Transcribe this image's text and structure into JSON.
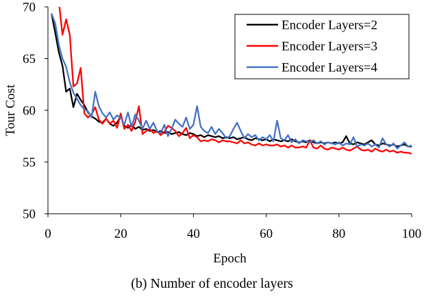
{
  "chart_data": {
    "type": "line",
    "xlabel": "Epoch",
    "ylabel": "Tour Cost",
    "xlim": [
      0,
      100
    ],
    "ylim": [
      50,
      70
    ],
    "xticks": [
      0,
      20,
      40,
      60,
      80,
      100
    ],
    "yticks": [
      50,
      55,
      60,
      65,
      70
    ],
    "grid": false,
    "legend_position": "top-right",
    "series": [
      {
        "name": "Encoder Layers=2",
        "color": "#000000",
        "points": [
          [
            1,
            69.3
          ],
          [
            2,
            67.5
          ],
          [
            3,
            65.6
          ],
          [
            4,
            64.3
          ],
          [
            5,
            61.8
          ],
          [
            6,
            62.1
          ],
          [
            7,
            60.3
          ],
          [
            8,
            61.6
          ],
          [
            9,
            61.0
          ],
          [
            10,
            60.5
          ],
          [
            11,
            59.8
          ],
          [
            12,
            59.4
          ],
          [
            13,
            59.2
          ],
          [
            14,
            58.9
          ],
          [
            15,
            58.8
          ],
          [
            16,
            59.2
          ],
          [
            17,
            58.7
          ],
          [
            18,
            58.5
          ],
          [
            19,
            58.8
          ],
          [
            20,
            59.4
          ],
          [
            21,
            58.5
          ],
          [
            22,
            58.3
          ],
          [
            23,
            58.6
          ],
          [
            24,
            58.2
          ],
          [
            25,
            58.4
          ],
          [
            26,
            58.1
          ],
          [
            27,
            58.2
          ],
          [
            28,
            58.0
          ],
          [
            29,
            58.1
          ],
          [
            30,
            57.9
          ],
          [
            31,
            58.0
          ],
          [
            32,
            57.8
          ],
          [
            33,
            57.9
          ],
          [
            34,
            57.7
          ],
          [
            35,
            57.8
          ],
          [
            36,
            57.9
          ],
          [
            37,
            57.7
          ],
          [
            38,
            57.6
          ],
          [
            39,
            57.8
          ],
          [
            40,
            57.7
          ],
          [
            41,
            57.5
          ],
          [
            42,
            57.6
          ],
          [
            43,
            57.4
          ],
          [
            44,
            57.6
          ],
          [
            45,
            57.5
          ],
          [
            46,
            57.4
          ],
          [
            47,
            57.5
          ],
          [
            48,
            57.3
          ],
          [
            49,
            57.4
          ],
          [
            50,
            57.3
          ],
          [
            51,
            57.4
          ],
          [
            52,
            57.2
          ],
          [
            53,
            57.3
          ],
          [
            54,
            57.4
          ],
          [
            55,
            57.2
          ],
          [
            56,
            57.1
          ],
          [
            57,
            57.3
          ],
          [
            58,
            57.2
          ],
          [
            59,
            57.1
          ],
          [
            60,
            57.2
          ],
          [
            61,
            57.0
          ],
          [
            62,
            57.2
          ],
          [
            63,
            57.1
          ],
          [
            64,
            57.0
          ],
          [
            65,
            57.1
          ],
          [
            66,
            57.0
          ],
          [
            67,
            57.2
          ],
          [
            68,
            57.0
          ],
          [
            69,
            56.9
          ],
          [
            70,
            57.0
          ],
          [
            71,
            56.9
          ],
          [
            72,
            57.1
          ],
          [
            73,
            56.9
          ],
          [
            74,
            56.8
          ],
          [
            75,
            56.9
          ],
          [
            76,
            56.8
          ],
          [
            77,
            56.9
          ],
          [
            78,
            56.8
          ],
          [
            79,
            56.9
          ],
          [
            80,
            56.8
          ],
          [
            81,
            56.9
          ],
          [
            82,
            57.5
          ],
          [
            83,
            56.8
          ],
          [
            84,
            56.7
          ],
          [
            85,
            56.9
          ],
          [
            86,
            56.8
          ],
          [
            87,
            56.7
          ],
          [
            88,
            56.9
          ],
          [
            89,
            57.1
          ],
          [
            90,
            56.7
          ],
          [
            91,
            56.6
          ],
          [
            92,
            56.8
          ],
          [
            93,
            56.7
          ],
          [
            94,
            56.6
          ],
          [
            95,
            56.7
          ],
          [
            96,
            56.5
          ],
          [
            97,
            56.6
          ],
          [
            98,
            56.7
          ],
          [
            99,
            56.5
          ],
          [
            100,
            56.5
          ]
        ]
      },
      {
        "name": "Encoder Layers=3",
        "color": "#ff0000",
        "points": [
          [
            1,
            71.0
          ],
          [
            2,
            70.5
          ],
          [
            3,
            70.5
          ],
          [
            4,
            67.3
          ],
          [
            5,
            68.8
          ],
          [
            6,
            67.3
          ],
          [
            7,
            62.3
          ],
          [
            8,
            62.6
          ],
          [
            9,
            64.1
          ],
          [
            10,
            59.7
          ],
          [
            11,
            59.3
          ],
          [
            12,
            59.6
          ],
          [
            13,
            60.3
          ],
          [
            14,
            59.1
          ],
          [
            15,
            58.7
          ],
          [
            16,
            59.2
          ],
          [
            17,
            58.7
          ],
          [
            18,
            59.0
          ],
          [
            19,
            58.3
          ],
          [
            20,
            59.7
          ],
          [
            21,
            58.2
          ],
          [
            22,
            58.6
          ],
          [
            23,
            58.0
          ],
          [
            24,
            58.9
          ],
          [
            25,
            60.4
          ],
          [
            26,
            57.7
          ],
          [
            27,
            58.0
          ],
          [
            28,
            58.2
          ],
          [
            29,
            57.8
          ],
          [
            30,
            58.0
          ],
          [
            31,
            57.6
          ],
          [
            32,
            57.9
          ],
          [
            33,
            58.5
          ],
          [
            34,
            58.3
          ],
          [
            35,
            58.0
          ],
          [
            36,
            57.5
          ],
          [
            37,
            57.8
          ],
          [
            38,
            58.3
          ],
          [
            39,
            57.3
          ],
          [
            40,
            57.6
          ],
          [
            41,
            57.4
          ],
          [
            42,
            57.0
          ],
          [
            43,
            57.1
          ],
          [
            44,
            57.0
          ],
          [
            45,
            57.2
          ],
          [
            46,
            57.1
          ],
          [
            47,
            56.9
          ],
          [
            48,
            57.1
          ],
          [
            49,
            57.0
          ],
          [
            50,
            57.0
          ],
          [
            51,
            56.9
          ],
          [
            52,
            56.8
          ],
          [
            53,
            57.1
          ],
          [
            54,
            56.8
          ],
          [
            55,
            56.9
          ],
          [
            56,
            56.7
          ],
          [
            57,
            56.6
          ],
          [
            58,
            56.8
          ],
          [
            59,
            56.6
          ],
          [
            60,
            56.7
          ],
          [
            61,
            56.6
          ],
          [
            62,
            56.6
          ],
          [
            63,
            56.7
          ],
          [
            64,
            56.5
          ],
          [
            65,
            56.6
          ],
          [
            66,
            56.4
          ],
          [
            67,
            56.6
          ],
          [
            68,
            56.4
          ],
          [
            69,
            56.4
          ],
          [
            70,
            56.5
          ],
          [
            71,
            56.4
          ],
          [
            72,
            57.1
          ],
          [
            73,
            56.4
          ],
          [
            74,
            56.3
          ],
          [
            75,
            56.6
          ],
          [
            76,
            56.3
          ],
          [
            77,
            56.2
          ],
          [
            78,
            56.4
          ],
          [
            79,
            56.3
          ],
          [
            80,
            56.2
          ],
          [
            81,
            56.4
          ],
          [
            82,
            56.2
          ],
          [
            83,
            56.1
          ],
          [
            84,
            56.3
          ],
          [
            85,
            56.5
          ],
          [
            86,
            56.2
          ],
          [
            87,
            56.1
          ],
          [
            88,
            56.2
          ],
          [
            89,
            56.0
          ],
          [
            90,
            56.3
          ],
          [
            91,
            56.1
          ],
          [
            92,
            56.0
          ],
          [
            93,
            56.2
          ],
          [
            94,
            56.0
          ],
          [
            95,
            56.1
          ],
          [
            96,
            55.9
          ],
          [
            97,
            56.0
          ],
          [
            98,
            55.9
          ],
          [
            99,
            55.9
          ],
          [
            100,
            55.8
          ]
        ]
      },
      {
        "name": "Encoder Layers=4",
        "color": "#4472c4",
        "points": [
          [
            1,
            69.3
          ],
          [
            2,
            68.4
          ],
          [
            3,
            66.3
          ],
          [
            4,
            65.0
          ],
          [
            5,
            64.2
          ],
          [
            6,
            62.7
          ],
          [
            7,
            61.7
          ],
          [
            8,
            61.1
          ],
          [
            9,
            60.5
          ],
          [
            10,
            60.1
          ],
          [
            11,
            59.9
          ],
          [
            12,
            59.3
          ],
          [
            13,
            61.8
          ],
          [
            14,
            60.4
          ],
          [
            15,
            59.7
          ],
          [
            16,
            59.3
          ],
          [
            17,
            59.8
          ],
          [
            18,
            59.1
          ],
          [
            19,
            59.5
          ],
          [
            20,
            59.3
          ],
          [
            21,
            58.6
          ],
          [
            22,
            59.8
          ],
          [
            23,
            58.4
          ],
          [
            24,
            59.6
          ],
          [
            25,
            59.0
          ],
          [
            26,
            58.2
          ],
          [
            27,
            59.0
          ],
          [
            28,
            58.2
          ],
          [
            29,
            58.8
          ],
          [
            30,
            58.0
          ],
          [
            31,
            57.8
          ],
          [
            32,
            58.6
          ],
          [
            33,
            57.5
          ],
          [
            34,
            58.2
          ],
          [
            35,
            59.1
          ],
          [
            36,
            58.7
          ],
          [
            37,
            58.4
          ],
          [
            38,
            59.3
          ],
          [
            39,
            58.2
          ],
          [
            40,
            58.6
          ],
          [
            41,
            60.4
          ],
          [
            42,
            58.4
          ],
          [
            43,
            58.0
          ],
          [
            44,
            57.8
          ],
          [
            45,
            58.4
          ],
          [
            46,
            57.7
          ],
          [
            47,
            58.2
          ],
          [
            48,
            57.8
          ],
          [
            49,
            57.3
          ],
          [
            50,
            57.5
          ],
          [
            51,
            58.2
          ],
          [
            52,
            58.8
          ],
          [
            53,
            58.0
          ],
          [
            54,
            57.3
          ],
          [
            55,
            57.7
          ],
          [
            56,
            57.4
          ],
          [
            57,
            57.6
          ],
          [
            58,
            57.1
          ],
          [
            59,
            57.4
          ],
          [
            60,
            57.2
          ],
          [
            61,
            57.6
          ],
          [
            62,
            57.0
          ],
          [
            63,
            59.0
          ],
          [
            64,
            57.3
          ],
          [
            65,
            57.1
          ],
          [
            66,
            57.6
          ],
          [
            67,
            56.9
          ],
          [
            68,
            57.2
          ],
          [
            69,
            56.8
          ],
          [
            70,
            57.1
          ],
          [
            71,
            57.0
          ],
          [
            72,
            56.9
          ],
          [
            73,
            57.1
          ],
          [
            74,
            56.8
          ],
          [
            75,
            57.0
          ],
          [
            76,
            56.7
          ],
          [
            77,
            56.9
          ],
          [
            78,
            56.8
          ],
          [
            79,
            56.7
          ],
          [
            80,
            56.9
          ],
          [
            81,
            56.6
          ],
          [
            82,
            56.8
          ],
          [
            83,
            56.7
          ],
          [
            84,
            57.4
          ],
          [
            85,
            56.5
          ],
          [
            86,
            56.7
          ],
          [
            87,
            56.6
          ],
          [
            88,
            56.8
          ],
          [
            89,
            56.5
          ],
          [
            90,
            56.7
          ],
          [
            91,
            56.4
          ],
          [
            92,
            57.3
          ],
          [
            93,
            56.7
          ],
          [
            94,
            56.5
          ],
          [
            95,
            56.8
          ],
          [
            96,
            56.3
          ],
          [
            97,
            56.6
          ],
          [
            98,
            56.9
          ],
          [
            99,
            56.5
          ],
          [
            100,
            56.6
          ]
        ]
      }
    ]
  },
  "caption": "(b) Number of encoder layers"
}
